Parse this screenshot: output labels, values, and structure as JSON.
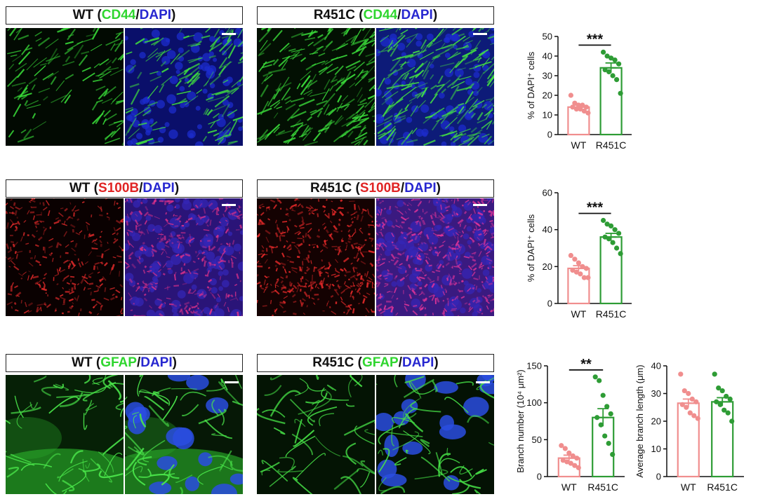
{
  "colors": {
    "wt": "#f08e8e",
    "mut": "#2e9c35",
    "green": "#35e035",
    "blue": "#2a2ad8",
    "red": "#e02424"
  },
  "rows": [
    {
      "marker": "CD44",
      "marker_color": "#2fd62f",
      "panels": [
        {
          "genotype": "WT",
          "open": " (",
          "marker": "CD44",
          "slash": "/",
          "dapi": "DAPI",
          "close": ")"
        },
        {
          "genotype": "R451C",
          "open": " (",
          "marker": "CD44",
          "slash": "/",
          "dapi": "DAPI",
          "close": ")"
        }
      ]
    },
    {
      "marker": "S100B",
      "marker_color": "#e02424",
      "panels": [
        {
          "genotype": "WT",
          "open": " (",
          "marker": "S100B",
          "slash": "/",
          "dapi": "DAPI",
          "close": ")"
        },
        {
          "genotype": "R451C",
          "open": " (",
          "marker": "S100B",
          "slash": "/",
          "dapi": "DAPI",
          "close": ")"
        }
      ]
    },
    {
      "marker": "GFAP",
      "marker_color": "#2fd62f",
      "panels": [
        {
          "genotype": "WT",
          "open": " (",
          "marker": "GFAP",
          "slash": "/",
          "dapi": "DAPI",
          "close": ")"
        },
        {
          "genotype": "R451C",
          "open": " (",
          "marker": "GFAP",
          "slash": "/",
          "dapi": "DAPI",
          "close": ")"
        }
      ]
    }
  ],
  "chart_data": [
    {
      "type": "bar",
      "categories": [
        "WT",
        "R451C"
      ],
      "ylabel": "% of DAPI⁺ cells",
      "ylim": [
        0,
        50
      ],
      "yticks": [
        0,
        10,
        20,
        30,
        40,
        50
      ],
      "values": [
        14,
        34
      ],
      "sem": [
        1,
        2.5
      ],
      "points": [
        [
          20,
          16,
          15,
          15,
          14,
          14,
          13,
          13,
          12,
          11
        ],
        [
          42,
          40,
          39,
          38,
          36,
          33,
          32,
          30,
          28,
          21
        ]
      ],
      "significance": "***"
    },
    {
      "type": "bar",
      "categories": [
        "WT",
        "R451C"
      ],
      "ylabel": "% of DAPI⁺ cells",
      "ylim": [
        0,
        60
      ],
      "yticks": [
        0,
        20,
        40,
        60
      ],
      "values": [
        19,
        36
      ],
      "sem": [
        1.5,
        2
      ],
      "points": [
        [
          26,
          24,
          22,
          20,
          19,
          18,
          17,
          16,
          14,
          14
        ],
        [
          45,
          43,
          42,
          40,
          38,
          36,
          35,
          33,
          30,
          27
        ]
      ],
      "significance": "***"
    },
    {
      "type": "bar",
      "categories": [
        "WT",
        "R451C"
      ],
      "ylabel": "Branch number (10⁴ μm²)",
      "ylim": [
        0,
        150
      ],
      "yticks": [
        0,
        50,
        100,
        150
      ],
      "values": [
        25,
        80
      ],
      "sem": [
        4,
        12
      ],
      "points": [
        [
          42,
          38,
          32,
          28,
          25,
          22,
          20,
          18,
          15,
          12
        ],
        [
          135,
          130,
          110,
          95,
          85,
          80,
          70,
          55,
          45,
          30
        ]
      ],
      "significance": "**"
    },
    {
      "type": "bar",
      "categories": [
        "WT",
        "R451C"
      ],
      "ylabel": "Average branch length (μm)",
      "ylim": [
        0,
        40
      ],
      "yticks": [
        0,
        10,
        20,
        30,
        40
      ],
      "values": [
        26.5,
        27
      ],
      "sem": [
        1.5,
        1.5
      ],
      "points": [
        [
          37,
          31,
          30,
          28,
          27,
          26,
          25,
          23,
          22,
          21
        ],
        [
          37,
          32,
          31,
          29,
          28,
          27,
          26,
          24,
          23,
          20
        ]
      ],
      "significance": ""
    }
  ]
}
